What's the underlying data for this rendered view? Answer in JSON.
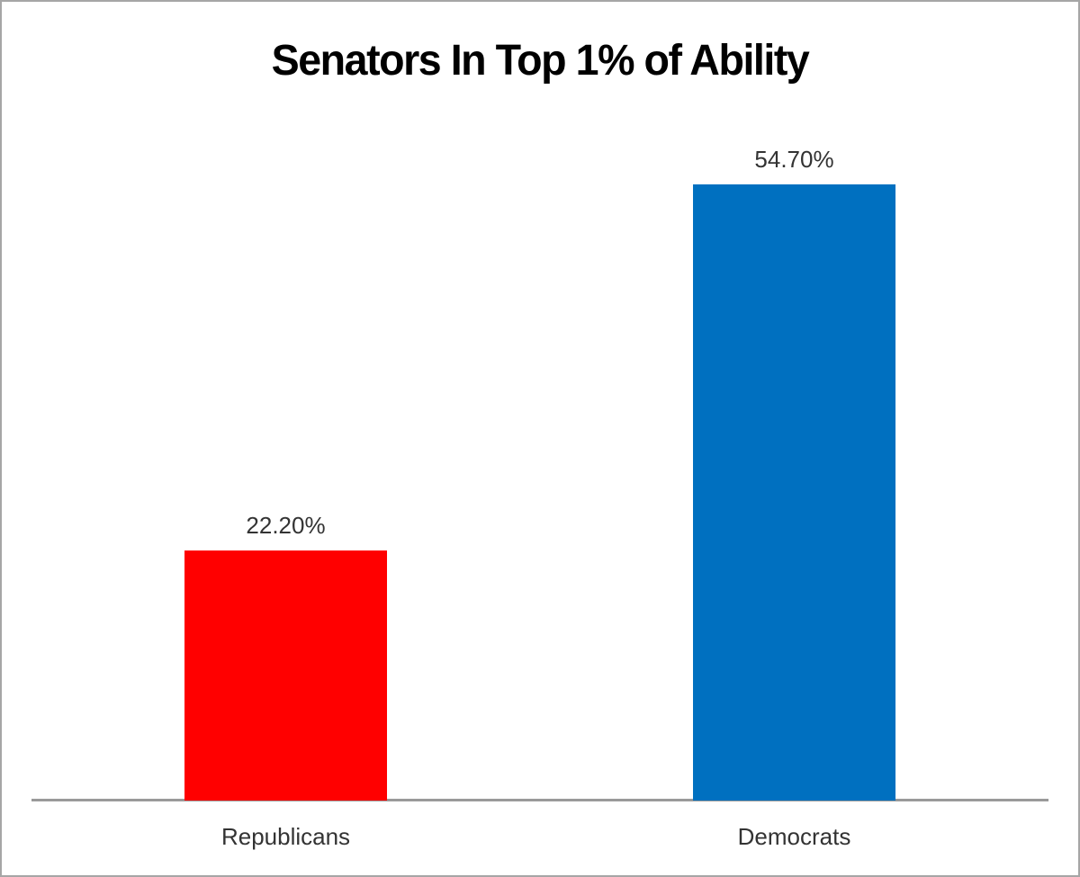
{
  "title": "Senators In Top 1% of Ability",
  "colors": {
    "background": "#ffffff",
    "frame_border": "#a6a6a6",
    "axis_line": "#9a9a9a",
    "title_text": "#000000",
    "label_text": "#333333",
    "republican_red": "#ff0000",
    "democrat_blue": "#0070c0"
  },
  "chart_data": {
    "type": "bar",
    "title": "Senators In Top 1% of Ability",
    "categories": [
      "Republicans",
      "Democrats"
    ],
    "values": [
      22.2,
      54.7
    ],
    "value_labels": [
      "22.20%",
      "54.70%"
    ],
    "bar_colors": [
      "#ff0000",
      "#0070c0"
    ],
    "xlabel": "",
    "ylabel": "",
    "ylim": [
      0,
      60
    ],
    "grid": false,
    "legend": false,
    "value_labels_position": "above-bars",
    "axis_ticks_visible": false
  }
}
